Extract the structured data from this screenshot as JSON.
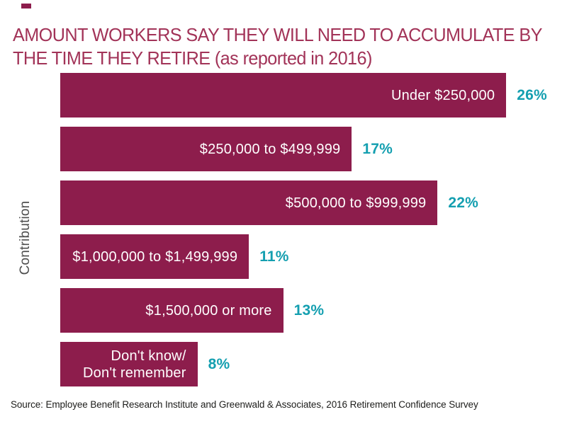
{
  "title": "AMOUNT WORKERS SAY THEY WILL NEED TO ACCUMULATE BY THE TIME THEY RETIRE (as reported in 2016)",
  "source": "Source: Employee Benefit Research Institute and Greenwald & Associates, 2016 Retirement Confidence Survey",
  "colors": {
    "bar": "#8D1D4C",
    "title": "#A23358",
    "value_label": "#149FB0",
    "axis_label": "#4D4D4D",
    "source_text": "#1D1D1B",
    "bar_text": "#FFFFFF",
    "background": "#FFFFFF"
  },
  "chart_data": {
    "type": "bar",
    "orientation": "horizontal",
    "title": "AMOUNT WORKERS SAY THEY WILL NEED TO ACCUMULATE BY THE TIME THEY RETIRE (as reported in 2016)",
    "xlabel": "",
    "ylabel": "Contribution",
    "categories": [
      "Under $250,000",
      "$250,000 to $499,999",
      "$500,000 to $999,999",
      "$1,000,000 to $1,499,999",
      "$1,500,000 or more",
      "Don't know/\nDon't remember"
    ],
    "values": [
      26,
      17,
      22,
      11,
      13,
      8
    ],
    "value_labels": [
      "26%",
      "17%",
      "22%",
      "11%",
      "13%",
      "8%"
    ],
    "xlim": [
      0,
      26
    ],
    "grid": false,
    "legend": "none",
    "bar_labels_position": "inside-right",
    "value_labels_position": "outside-right"
  }
}
